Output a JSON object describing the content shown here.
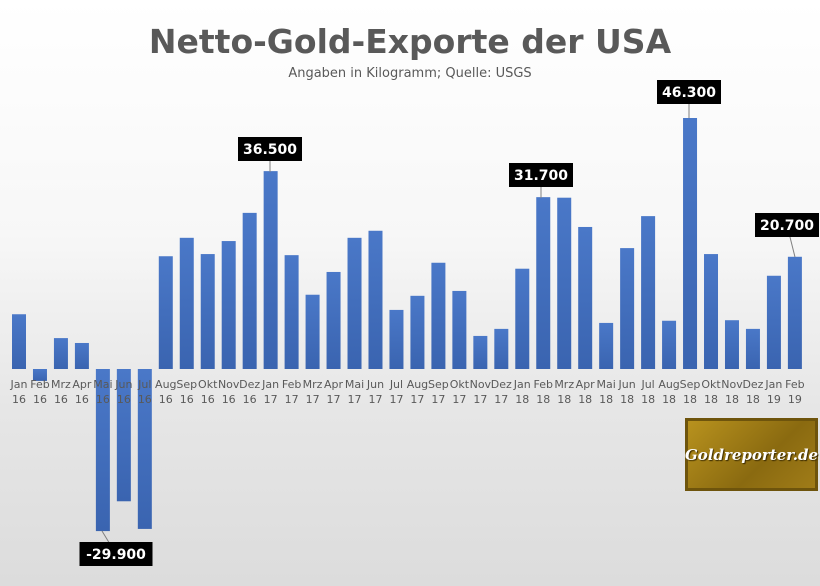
{
  "chart_data": {
    "type": "bar",
    "title": "Netto-Gold-Exporte der USA",
    "subtitle": "Angaben in Kilogramm; Quelle: USGS",
    "xlabel": "",
    "ylabel": "",
    "categories": [
      "Jan 16",
      "Feb 16",
      "Mrz 16",
      "Apr 16",
      "Mai 16",
      "Jun 16",
      "Jul 16",
      "Aug 16",
      "Sep 16",
      "Okt 16",
      "Nov 16",
      "Dez 16",
      "Jan 17",
      "Feb 17",
      "Mrz 17",
      "Apr 17",
      "Mai 17",
      "Jun 17",
      "Jul 17",
      "Aug 17",
      "Sep 17",
      "Okt 17",
      "Nov 17",
      "Dez 17",
      "Jan 18",
      "Feb 18",
      "Mrz 18",
      "Apr 18",
      "Mai 18",
      "Jun 18",
      "Jul 18",
      "Aug 18",
      "Sep 18",
      "Okt 18",
      "Nov 18",
      "Dez 18",
      "Jan 19",
      "Feb 19"
    ],
    "values": [
      10100,
      -2200,
      5700,
      4800,
      -29900,
      -24400,
      -29500,
      20800,
      24200,
      21200,
      23600,
      28800,
      36500,
      21000,
      13700,
      17900,
      24200,
      25500,
      10900,
      13500,
      19600,
      14400,
      6100,
      7400,
      18500,
      31700,
      31600,
      26200,
      8500,
      22300,
      28200,
      8900,
      46300,
      21200,
      9000,
      7400,
      17200,
      20700
    ],
    "data_labels": [
      {
        "index": 4,
        "text": "-29.900"
      },
      {
        "index": 12,
        "text": "36.500"
      },
      {
        "index": 25,
        "text": "31.700"
      },
      {
        "index": 32,
        "text": "46.300"
      },
      {
        "index": 37,
        "text": "20.700"
      }
    ],
    "bar_color": "#4472c4",
    "grid": false,
    "legend": "none"
  },
  "logo": {
    "text": "Goldreporter.de"
  }
}
